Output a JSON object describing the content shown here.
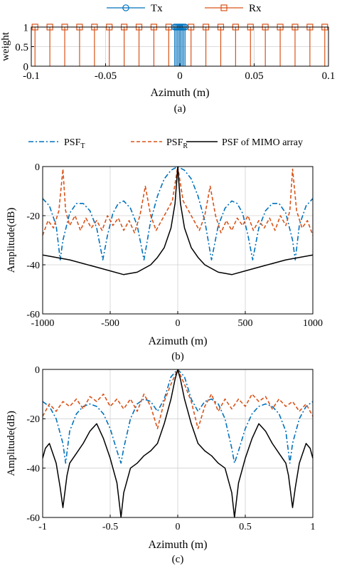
{
  "colors": {
    "tx": "#0072BD",
    "rx": "#D95319",
    "mimo": "#000000",
    "grid": "#d0d0d0",
    "axis": "#000000"
  },
  "chart_data": [
    {
      "id": "a",
      "type": "stem",
      "caption": "(a)",
      "xlabel": "Azimuth (m)",
      "ylabel": "weight",
      "xlim": [
        -0.1,
        0.1
      ],
      "ylim": [
        0,
        1
      ],
      "xticks": [
        -0.1,
        -0.05,
        0,
        0.05,
        0.1
      ],
      "xtick_labels": [
        "-0.1",
        "-0.05",
        "0",
        "0.05",
        "0.1"
      ],
      "yticks": [
        0,
        0.5,
        1
      ],
      "ytick_labels": [
        "0",
        "0.5",
        "1"
      ],
      "grid": true,
      "legend": {
        "placement": "top-center",
        "entries": [
          "Tx",
          "Rx"
        ]
      },
      "series": [
        {
          "name": "Tx",
          "marker": "circle",
          "x": [
            -0.0035,
            -0.0025,
            -0.0015,
            -0.0005,
            0.0005,
            0.0015,
            0.0025,
            0.0035
          ],
          "values": [
            1,
            1,
            1,
            1,
            1,
            1,
            1,
            1
          ]
        },
        {
          "name": "Rx",
          "marker": "square",
          "x": [
            -0.0975,
            -0.0875,
            -0.0775,
            -0.0675,
            -0.0575,
            -0.0475,
            -0.0375,
            -0.0275,
            -0.0175,
            -0.0075,
            0.0075,
            0.0175,
            0.0275,
            0.0375,
            0.0475,
            0.0575,
            0.0675,
            0.0775,
            0.0875,
            0.0975
          ],
          "values": [
            1,
            1,
            1,
            1,
            1,
            1,
            1,
            1,
            1,
            1,
            1,
            1,
            1,
            1,
            1,
            1,
            1,
            1,
            1,
            1
          ]
        }
      ]
    },
    {
      "id": "legend_bc",
      "type": "legend",
      "placement": "top-center",
      "entries": [
        {
          "name": "PSF",
          "sub": "T",
          "style": "dash-dot"
        },
        {
          "name": "PSF",
          "sub": "R",
          "style": "dashed"
        },
        {
          "name": "PSF of MIMO array",
          "sub": "",
          "style": "solid"
        }
      ]
    },
    {
      "id": "b",
      "type": "line",
      "caption": "(b)",
      "xlabel": "Azimuth (m)",
      "ylabel": "Amplitude(dB)",
      "xlim": [
        -1000,
        1000
      ],
      "ylim": [
        -60,
        0
      ],
      "xticks": [
        -1000,
        -500,
        0,
        500,
        1000
      ],
      "xtick_labels": [
        "-1000",
        "-500",
        "0",
        "500",
        "1000"
      ],
      "yticks": [
        -60,
        -40,
        -20,
        0
      ],
      "ytick_labels": [
        "-60",
        "-40",
        "-20",
        "0"
      ],
      "grid": true,
      "series": [
        {
          "name": "PSF_T",
          "x": [
            -1000,
            -950,
            -900,
            -870,
            -850,
            -800,
            -750,
            -700,
            -650,
            -600,
            -555,
            -520,
            -480,
            -440,
            -400,
            -350,
            -300,
            -250,
            -200,
            -150,
            -100,
            -50,
            0,
            50,
            100,
            150,
            200,
            250,
            300,
            350,
            400,
            440,
            480,
            520,
            555,
            600,
            650,
            700,
            750,
            800,
            850,
            870,
            900,
            950,
            1000
          ],
          "values": [
            -13,
            -16,
            -24,
            -38,
            -30,
            -19,
            -15,
            -15,
            -18,
            -25,
            -38,
            -28,
            -19,
            -15,
            -14,
            -17,
            -24,
            -38,
            -22,
            -12,
            -5,
            -1.5,
            0,
            -1.5,
            -5,
            -12,
            -22,
            -38,
            -24,
            -17,
            -14,
            -15,
            -19,
            -28,
            -38,
            -25,
            -18,
            -15,
            -15,
            -19,
            -30,
            -38,
            -24,
            -16,
            -13
          ]
        },
        {
          "name": "PSF_R",
          "x": [
            -1000,
            -960,
            -920,
            -880,
            -850,
            -830,
            -800,
            -760,
            -720,
            -680,
            -640,
            -600,
            -560,
            -520,
            -480,
            -440,
            -400,
            -360,
            -320,
            -280,
            -240,
            -200,
            -160,
            -120,
            -80,
            -40,
            0,
            40,
            80,
            120,
            160,
            200,
            240,
            280,
            320,
            360,
            400,
            440,
            480,
            520,
            560,
            600,
            640,
            680,
            720,
            760,
            800,
            830,
            850,
            880,
            920,
            960,
            1000
          ],
          "values": [
            -28,
            -22,
            -25,
            -18,
            -1,
            -18,
            -24,
            -20,
            -26,
            -21,
            -25,
            -22,
            -26,
            -20,
            -24,
            -21,
            -26,
            -22,
            -27,
            -20,
            -8,
            -20,
            -26,
            -22,
            -18,
            -14,
            0,
            -14,
            -18,
            -22,
            -26,
            -20,
            -8,
            -20,
            -27,
            -22,
            -26,
            -21,
            -24,
            -20,
            -26,
            -22,
            -25,
            -21,
            -26,
            -20,
            -24,
            -18,
            -1,
            -18,
            -25,
            -22,
            -28
          ]
        },
        {
          "name": "PSF of MIMO array",
          "x": [
            -1000,
            -800,
            -600,
            -400,
            -300,
            -200,
            -150,
            -100,
            -50,
            -20,
            0,
            20,
            50,
            100,
            150,
            200,
            300,
            400,
            600,
            800,
            1000
          ],
          "values": [
            -36,
            -38,
            -41,
            -44,
            -43,
            -40,
            -37,
            -33,
            -25,
            -15,
            0,
            -15,
            -25,
            -33,
            -37,
            -40,
            -43,
            -44,
            -41,
            -38,
            -36
          ]
        }
      ]
    },
    {
      "id": "c",
      "type": "line",
      "caption": "(c)",
      "xlabel": "Azimuth (m)",
      "ylabel": "Amplitude(dB)",
      "xlim": [
        -1,
        1
      ],
      "ylim": [
        -60,
        0
      ],
      "xticks": [
        -1,
        -0.5,
        0,
        0.5,
        1
      ],
      "xtick_labels": [
        "-1",
        "-0.5",
        "0",
        "0.5",
        "1"
      ],
      "yticks": [
        -60,
        -40,
        -20,
        0
      ],
      "ytick_labels": [
        "-60",
        "-40",
        "-20",
        "0"
      ],
      "grid": true,
      "series": [
        {
          "name": "PSF_T",
          "x": [
            -1,
            -0.95,
            -0.9,
            -0.85,
            -0.83,
            -0.8,
            -0.75,
            -0.7,
            -0.65,
            -0.6,
            -0.55,
            -0.5,
            -0.45,
            -0.42,
            -0.4,
            -0.35,
            -0.3,
            -0.25,
            -0.2,
            -0.15,
            -0.1,
            -0.05,
            0,
            0.05,
            0.1,
            0.15,
            0.2,
            0.25,
            0.3,
            0.35,
            0.4,
            0.42,
            0.45,
            0.5,
            0.55,
            0.6,
            0.65,
            0.7,
            0.75,
            0.8,
            0.83,
            0.85,
            0.9,
            0.95,
            1
          ],
          "values": [
            -13,
            -15,
            -20,
            -30,
            -38,
            -25,
            -18,
            -15,
            -14,
            -15,
            -18,
            -24,
            -33,
            -38,
            -32,
            -20,
            -14,
            -12,
            -13,
            -17,
            -12,
            -3,
            0,
            -3,
            -12,
            -17,
            -13,
            -12,
            -14,
            -20,
            -32,
            -38,
            -33,
            -24,
            -18,
            -15,
            -14,
            -15,
            -18,
            -25,
            -38,
            -30,
            -20,
            -15,
            -13
          ]
        },
        {
          "name": "PSF_R",
          "x": [
            -1,
            -0.95,
            -0.9,
            -0.85,
            -0.8,
            -0.75,
            -0.7,
            -0.65,
            -0.6,
            -0.55,
            -0.5,
            -0.45,
            -0.4,
            -0.35,
            -0.3,
            -0.25,
            -0.2,
            -0.15,
            -0.1,
            -0.05,
            0,
            0.05,
            0.1,
            0.15,
            0.2,
            0.25,
            0.3,
            0.35,
            0.4,
            0.45,
            0.5,
            0.55,
            0.6,
            0.65,
            0.7,
            0.75,
            0.8,
            0.85,
            0.9,
            0.95,
            1
          ],
          "values": [
            -19,
            -14,
            -17,
            -13,
            -15,
            -12,
            -16,
            -11,
            -13,
            -10,
            -15,
            -12,
            -16,
            -12,
            -17,
            -10,
            -15,
            -24,
            -13,
            -6,
            0,
            -6,
            -13,
            -24,
            -15,
            -10,
            -17,
            -12,
            -16,
            -12,
            -15,
            -10,
            -13,
            -11,
            -16,
            -12,
            -15,
            -13,
            -17,
            -14,
            -19
          ]
        },
        {
          "name": "PSF of MIMO array",
          "x": [
            -1,
            -0.98,
            -0.95,
            -0.9,
            -0.87,
            -0.85,
            -0.82,
            -0.8,
            -0.75,
            -0.7,
            -0.65,
            -0.6,
            -0.55,
            -0.5,
            -0.45,
            -0.42,
            -0.4,
            -0.35,
            -0.3,
            -0.25,
            -0.2,
            -0.15,
            -0.1,
            -0.05,
            -0.02,
            0,
            0.02,
            0.05,
            0.1,
            0.15,
            0.2,
            0.25,
            0.3,
            0.35,
            0.4,
            0.42,
            0.45,
            0.5,
            0.55,
            0.6,
            0.65,
            0.7,
            0.75,
            0.8,
            0.82,
            0.85,
            0.87,
            0.9,
            0.95,
            0.98,
            1
          ],
          "values": [
            -36,
            -32,
            -30,
            -38,
            -48,
            -56,
            -43,
            -38,
            -34,
            -30,
            -25,
            -22,
            -28,
            -36,
            -46,
            -60,
            -50,
            -40,
            -38,
            -35,
            -33,
            -30,
            -22,
            -12,
            -4,
            0,
            -4,
            -12,
            -22,
            -30,
            -33,
            -35,
            -38,
            -40,
            -50,
            -60,
            -46,
            -36,
            -28,
            -22,
            -25,
            -30,
            -34,
            -38,
            -43,
            -56,
            -48,
            -38,
            -30,
            -32,
            -36
          ]
        }
      ]
    }
  ]
}
